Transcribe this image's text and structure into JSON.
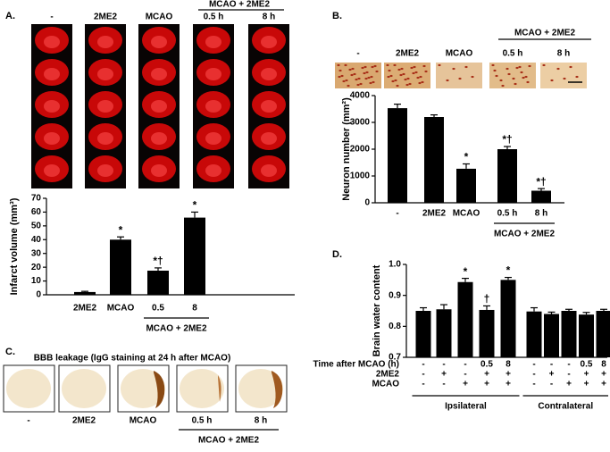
{
  "panels": {
    "a": {
      "label": "A.",
      "headers": [
        "-",
        "2ME2",
        "MCAO",
        "0.5 h",
        "8 h"
      ],
      "group": "MCAO + 2ME2"
    },
    "b": {
      "label": "B.",
      "headers": [
        "-",
        "2ME2",
        "MCAO",
        "0.5 h",
        "8 h"
      ],
      "group": "MCAO + 2ME2"
    },
    "c": {
      "label": "C.",
      "title": "BBB leakage (IgG staining at 24 h after MCAO)",
      "labels": [
        "-",
        "2ME2",
        "MCAO",
        "0.5 h",
        "8 h"
      ],
      "group": "MCAO + 2ME2"
    },
    "d": {
      "label": "D."
    }
  },
  "chart_data": [
    {
      "type": "bar",
      "ylabel": "Infarct volume (mm³)",
      "categories": [
        "2ME2",
        "MCAO",
        "0.5",
        "8"
      ],
      "values": [
        2,
        40,
        17.5,
        56
      ],
      "errors": [
        0.5,
        2,
        2,
        4
      ],
      "color": "#000000",
      "ylim": [
        0,
        70
      ],
      "yticks": [
        0,
        10,
        20,
        30,
        40,
        50,
        60,
        70
      ],
      "annotations": [
        {
          "bar": 1,
          "text": "*"
        },
        {
          "bar": 2,
          "text": "*†"
        },
        {
          "bar": 3,
          "text": "*"
        }
      ],
      "groups": [
        {
          "text": "MCAO + 2ME2",
          "bars": [
            2,
            3
          ]
        }
      ]
    },
    {
      "type": "bar",
      "ylabel": "Neuron number (mm²)",
      "categories": [
        "-",
        "2ME2",
        "MCAO",
        "0.5 h",
        "8 h"
      ],
      "values": [
        3530,
        3200,
        1270,
        2000,
        450
      ],
      "errors": [
        150,
        80,
        180,
        100,
        80
      ],
      "color": "#000000",
      "ylim": [
        0,
        4000
      ],
      "yticks": [
        0,
        1000,
        2000,
        3000,
        4000
      ],
      "annotations": [
        {
          "bar": 2,
          "text": "*"
        },
        {
          "bar": 3,
          "text": "*†"
        },
        {
          "bar": 4,
          "text": "*†"
        }
      ],
      "groups": [
        {
          "text": "MCAO + 2ME2",
          "bars": [
            3,
            4
          ]
        }
      ]
    },
    {
      "type": "bar",
      "ylabel": "Brain water content",
      "values": [
        0.85,
        0.855,
        0.943,
        0.853,
        0.95,
        0.848,
        0.84,
        0.85,
        0.838,
        0.85
      ],
      "errors": [
        0.01,
        0.015,
        0.012,
        0.013,
        0.008,
        0.012,
        0.006,
        0.005,
        0.007,
        0.005
      ],
      "color": "#000000",
      "ylim": [
        0.7,
        1.0
      ],
      "yticks": [
        0.7,
        0.8,
        0.9,
        {
          "value": 1.0,
          "label": "1.0"
        }
      ],
      "annotations": [
        {
          "bar": 2,
          "text": "*"
        },
        {
          "bar": 3,
          "text": "†"
        },
        {
          "bar": 4,
          "text": "*"
        }
      ],
      "conditions": [
        {
          "label": "Time after MCAO (h)",
          "cells": [
            "-",
            "-",
            "-",
            "0.5",
            "8",
            "-",
            "-",
            "-",
            "0.5",
            "8"
          ]
        },
        {
          "label": "2ME2",
          "cells": [
            "-",
            "+",
            "-",
            "+",
            "+",
            "-",
            "+",
            "-",
            "+",
            "+"
          ]
        },
        {
          "label": "MCAO",
          "cells": [
            "-",
            "-",
            "+",
            "+",
            "+",
            "-",
            "-",
            "+",
            "+",
            "+"
          ]
        }
      ],
      "groups": [
        {
          "text": "Ipsilateral",
          "bars": [
            0,
            4
          ]
        },
        {
          "text": "Contralateral",
          "bars": [
            5,
            9
          ]
        }
      ]
    }
  ]
}
